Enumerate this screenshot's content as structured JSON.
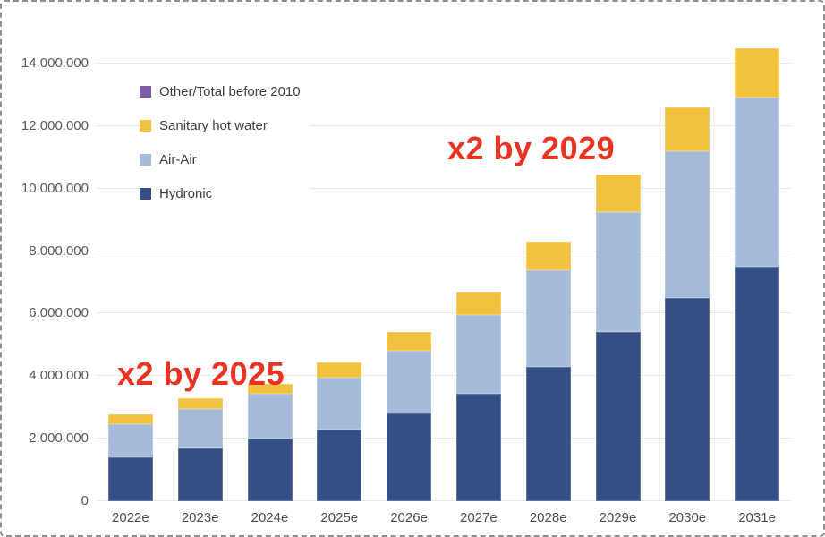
{
  "chart_data": {
    "type": "bar",
    "stacked": true,
    "title": "",
    "xlabel": "",
    "ylabel": "",
    "categories": [
      "2022e",
      "2023e",
      "2024e",
      "2025e",
      "2026e",
      "2027e",
      "2028e",
      "2029e",
      "2030e",
      "2031e"
    ],
    "series": [
      {
        "name": "Hydronic",
        "color": "#344e86",
        "values": [
          1400000,
          1700000,
          2000000,
          2300000,
          2800000,
          3450000,
          4300000,
          5400000,
          6500000,
          7500000
        ]
      },
      {
        "name": "Air-Air",
        "color": "#a5bbd9",
        "values": [
          1050000,
          1250000,
          1450000,
          1650000,
          2000000,
          2500000,
          3100000,
          3850000,
          4700000,
          5400000
        ]
      },
      {
        "name": "Sanitary hot water",
        "color": "#f2c13e",
        "values": [
          320000,
          350000,
          300000,
          500000,
          600000,
          750000,
          900000,
          1200000,
          1400000,
          1600000
        ]
      },
      {
        "name": "Other/Total before 2010",
        "color": "#7c5ca6",
        "values": [
          0,
          0,
          0,
          0,
          0,
          0,
          0,
          0,
          0,
          0
        ]
      }
    ],
    "totals": [
      2770000,
      3300000,
      3750000,
      4450000,
      5400000,
      6700000,
      8300000,
      10450000,
      12600000,
      14500000
    ],
    "y_axis": {
      "ticks": [
        "0",
        "2.000.000",
        "4.000.000",
        "6.000.000",
        "8.000.000",
        "10.000.000",
        "12.000.000",
        "14.000.000"
      ],
      "tick_values": [
        0,
        2000000,
        4000000,
        6000000,
        8000000,
        10000000,
        12000000,
        14000000
      ],
      "ylim": [
        0,
        14830000
      ],
      "grid": true
    },
    "legend": {
      "position": "top-left-inside",
      "items": [
        "Other/Total before 2010",
        "Sanitary hot water",
        "Air-Air",
        "Hydronic"
      ]
    },
    "annotations": [
      {
        "text": "x2 by 2025",
        "color": "#ea3323",
        "near_category": "2025e"
      },
      {
        "text": "x2 by 2029",
        "color": "#ea3323",
        "near_category": "2029e"
      }
    ]
  }
}
